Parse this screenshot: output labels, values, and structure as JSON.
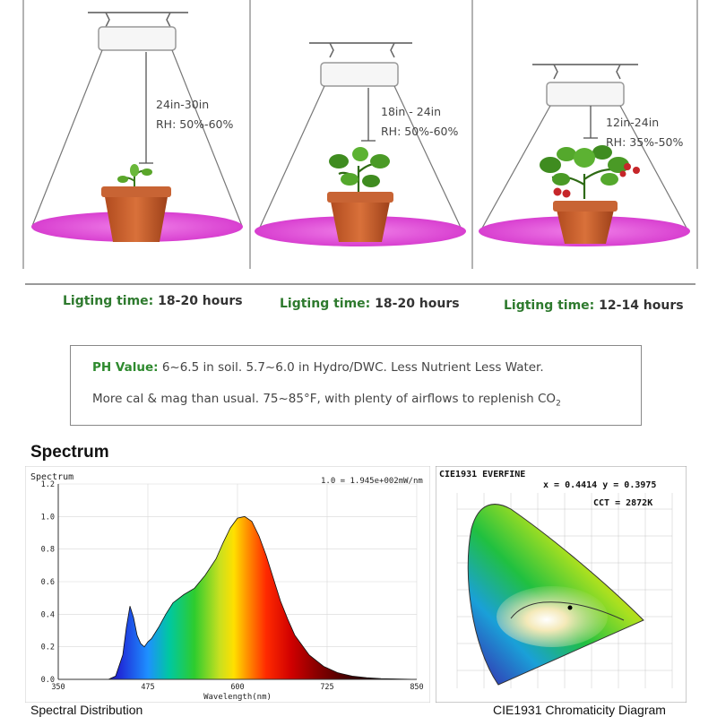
{
  "stages": [
    {
      "distance": "24in-30in",
      "humidity": "RH: 50%-60%",
      "lighting_label": "Ligting time:",
      "lighting_value": "18-20 hours"
    },
    {
      "distance": "18in - 24in",
      "humidity": "RH: 50%-60%",
      "lighting_label": "Ligting time:",
      "lighting_value": "18-20 hours"
    },
    {
      "distance": "12in-24in",
      "humidity": "RH: 35%-50%",
      "lighting_label": "Ligting time:",
      "lighting_value": "12-14 hours"
    }
  ],
  "info": {
    "ph_label": "PH Value:",
    "ph_text": "6~6.5 in soil. 5.7~6.0 in Hydro/DWC. Less Nutrient Less Water.",
    "line2_text": "More cal & mag than usual. 75~85°F, with plenty of airflows to replenish CO",
    "line2_sub": "2"
  },
  "spectrum_heading": "Spectrum",
  "spectral_chart": {
    "title": "Spectrum",
    "scale_note": "1.0 = 1.945e+002mW/nm",
    "xlabel": "Wavelength(nm)",
    "x_ticks": [
      "350",
      "475",
      "600",
      "725",
      "850"
    ],
    "y_ticks": [
      "0.0",
      "0.2",
      "0.4",
      "0.6",
      "0.8",
      "1.0",
      "1.2"
    ],
    "caption": "Spectral Distribution"
  },
  "chart_data": [
    {
      "type": "area",
      "title": "Spectrum",
      "xlabel": "Wavelength(nm)",
      "ylabel": "",
      "xlim": [
        350,
        850
      ],
      "ylim": [
        0,
        1.2
      ],
      "x": [
        350,
        420,
        430,
        440,
        445,
        450,
        455,
        460,
        465,
        470,
        475,
        480,
        490,
        500,
        510,
        525,
        540,
        555,
        570,
        580,
        590,
        600,
        610,
        620,
        630,
        640,
        650,
        660,
        670,
        680,
        700,
        720,
        740,
        760,
        780,
        800,
        850
      ],
      "y": [
        0.0,
        0.0,
        0.02,
        0.15,
        0.32,
        0.45,
        0.38,
        0.27,
        0.22,
        0.2,
        0.23,
        0.25,
        0.32,
        0.4,
        0.47,
        0.52,
        0.56,
        0.64,
        0.74,
        0.84,
        0.93,
        0.99,
        1.0,
        0.97,
        0.88,
        0.76,
        0.62,
        0.48,
        0.37,
        0.27,
        0.15,
        0.08,
        0.04,
        0.02,
        0.01,
        0.005,
        0.0
      ]
    },
    {
      "type": "scatter",
      "title": "CIE1931  EVERFINE",
      "x": [
        0.4414
      ],
      "y": [
        0.3975
      ],
      "cct": "2872K"
    }
  ],
  "cie_chart": {
    "title": "CIE1931  EVERFINE",
    "coords": "x = 0.4414  y = 0.3975",
    "cct": "CCT = 2872K",
    "caption": "CIE1931 Chromaticity Diagram"
  },
  "colors": {
    "label_green": "#2e7a2e",
    "light_disc": "#e64fd8",
    "pot": "#c65a2a",
    "text_gray": "#444444"
  }
}
